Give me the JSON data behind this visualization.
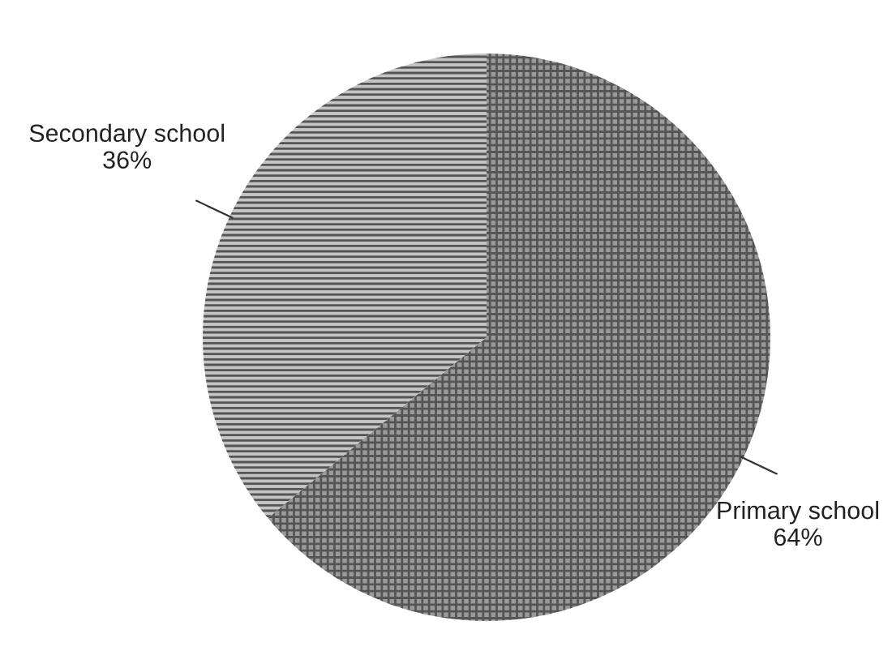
{
  "chart_data": {
    "type": "pie",
    "categories": [
      "Primary school",
      "Secondary school"
    ],
    "values": [
      64,
      36
    ],
    "value_labels": [
      "64%",
      "36%"
    ],
    "colors": [
      "#9a9a9a",
      "#c4c4c4"
    ]
  }
}
